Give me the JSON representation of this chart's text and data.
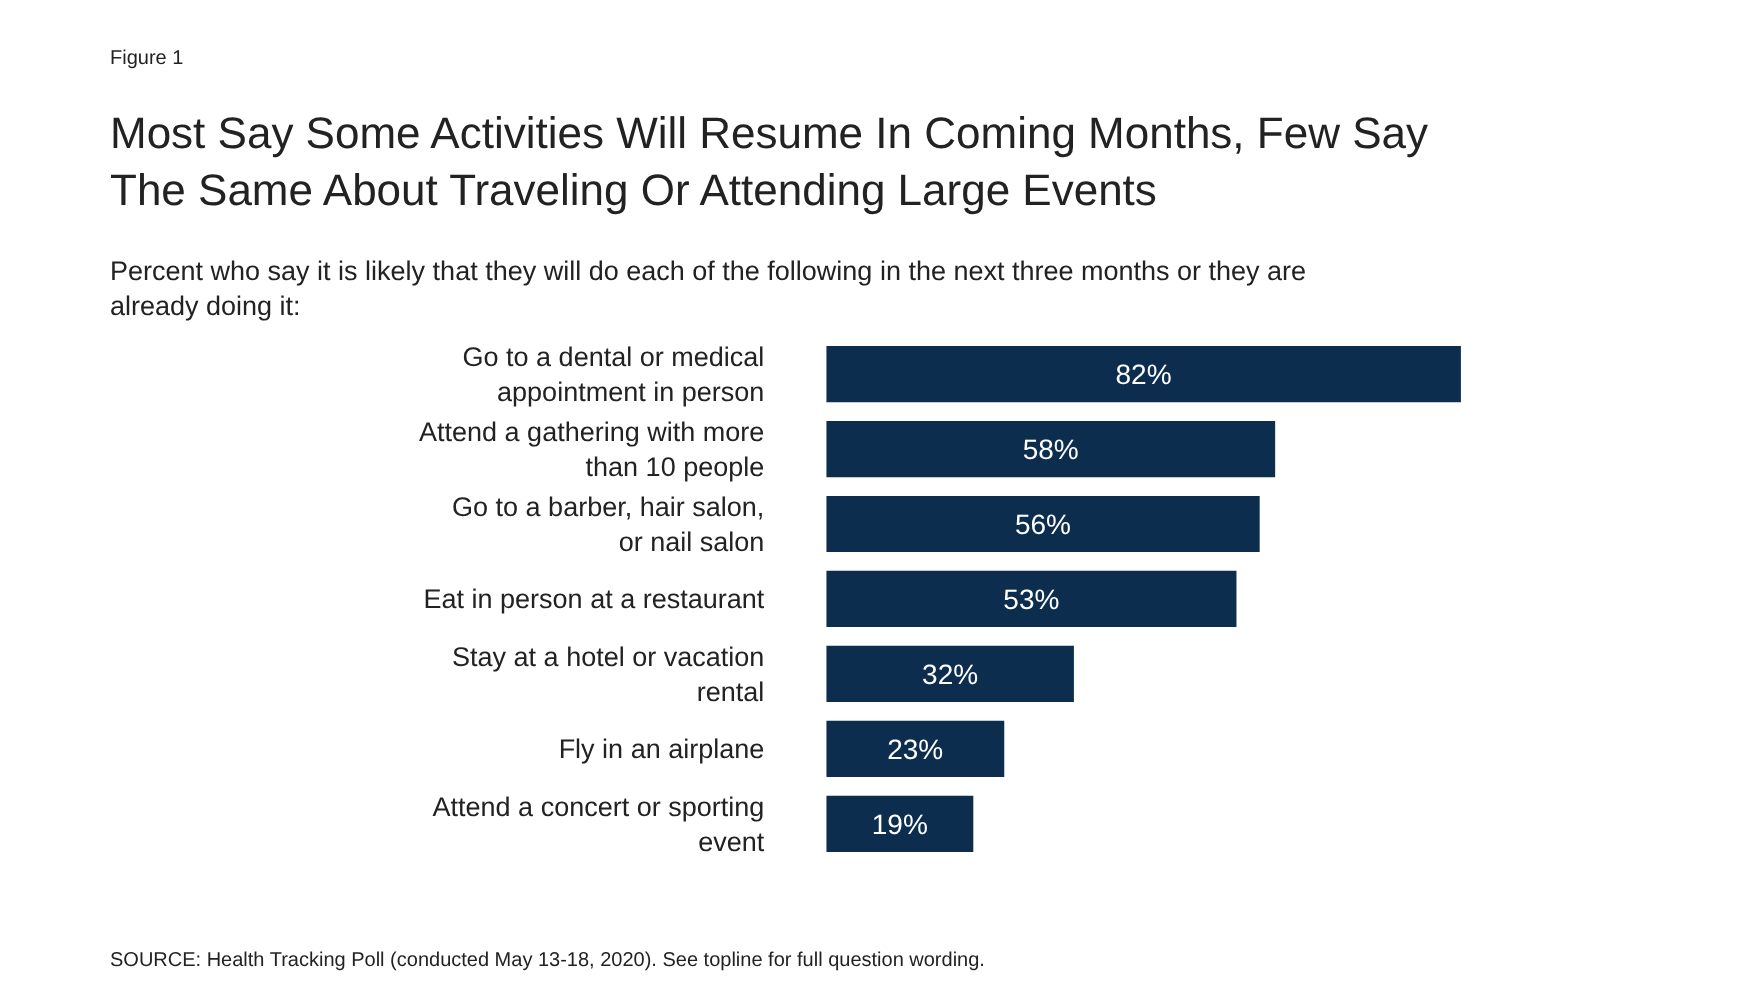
{
  "chart_data": {
    "type": "bar",
    "orientation": "horizontal",
    "title": "Most Say Some Activities Will Resume In Coming Months, Few Say The Same About Traveling Or Attending Large Events",
    "subtitle": "Percent who say it is likely that they will do each of the following in the next three months or they are already doing it:",
    "categories": [
      "Go to a dental or medical appointment in person",
      "Attend a gathering with more than 10 people",
      "Go to a barber, hair salon, or nail salon",
      "Eat in person at a restaurant",
      "Stay at a hotel or vacation rental",
      "Fly in an airplane",
      "Attend a concert or sporting event"
    ],
    "values": [
      82,
      58,
      56,
      53,
      32,
      23,
      19
    ],
    "value_labels": [
      "82%",
      "58%",
      "56%",
      "53%",
      "32%",
      "23%",
      "19%"
    ],
    "color": "#0d2d4f",
    "annotations": [
      "Figure 1",
      "SOURCE: Health Tracking Poll (conducted May 13-18, 2020). See topline for full question wording."
    ],
    "legend": false
  }
}
